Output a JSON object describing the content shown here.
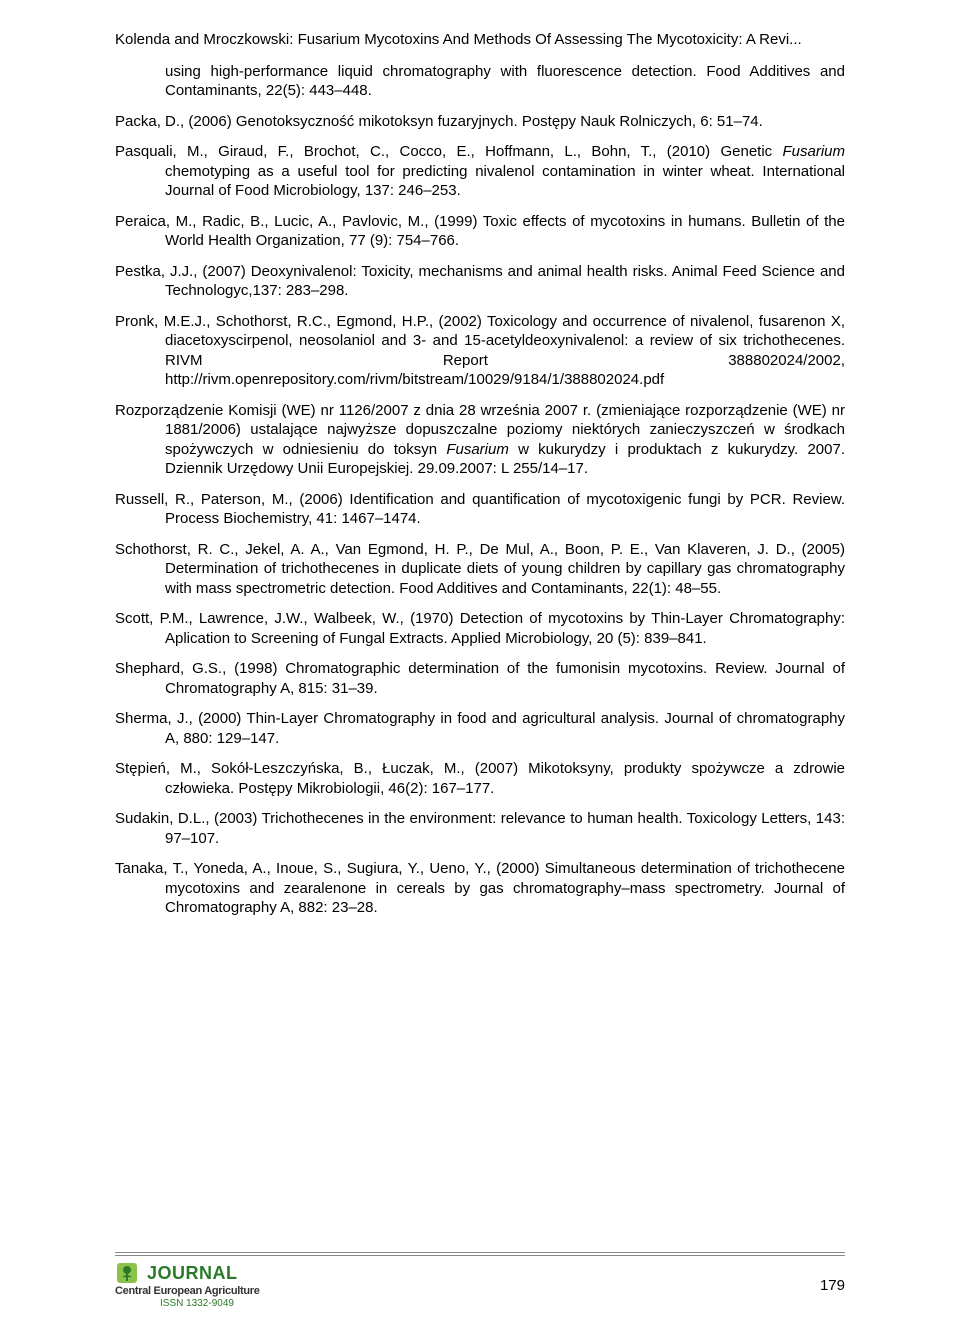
{
  "header": "Kolenda and Mroczkowski: Fusarium Mycotoxins And Methods Of Assessing The Mycotoxicity: A Revi...",
  "refs": [
    {
      "indent": 50,
      "text": "using high-performance liquid chromatography with fluorescence detection. Food Additives and Contaminants, 22(5): 443–448."
    },
    {
      "hanging": true,
      "text": "Packa, D., (2006) Genotoksyczność mikotoksyn fuzaryjnych. Postępy Nauk Rolniczych, 6: 51–74."
    },
    {
      "hanging": true,
      "html": "Pasquali, M., Giraud, F., Brochot, C., Cocco, E., Hoffmann, L., Bohn, T., (2010) Genetic <span class='italic'>Fusarium</span> chemotyping as a useful tool for predicting nivalenol contamination in winter wheat. International Journal of Food Microbiology, 137: 246–253."
    },
    {
      "hanging": true,
      "text": "Peraica, M., Radic, B., Lucic, A., Pavlovic, M., (1999) Toxic effects of mycotoxins in humans. Bulletin of the World Health Organization, 77 (9): 754–766."
    },
    {
      "hanging": true,
      "text": "Pestka, J.J., (2007) Deoxynivalenol: Toxicity, mechanisms and animal health risks. Animal Feed Science and Technologyc,137: 283–298."
    },
    {
      "hanging": true,
      "text": "Pronk, M.E.J., Schothorst, R.C., Egmond, H.P., (2002) Toxicology and occurrence of nivalenol, fusarenon X, diacetoxyscirpenol, neosolaniol and 3- and 15-acetyldeoxynivalenol: a review of six trichothecenes. RIVM Report 388802024/2002, http://rivm.openrepository.com/rivm/bitstream/10029/9184/1/388802024.pdf"
    },
    {
      "hanging": true,
      "html": "Rozporządzenie Komisji (WE) nr 1126/2007 z dnia 28 września 2007 r. (zmieniające rozporządzenie (WE) nr 1881/2006) ustalające najwyższe dopuszczalne poziomy niektórych zanieczyszczeń w środkach spożywczych w odniesieniu do toksyn <span class='italic'>Fusarium</span> w kukurydzy i produktach z kukurydzy. 2007. Dziennik Urzędowy Unii Europejskiej. 29.09.2007: L 255/14–17."
    },
    {
      "hanging": true,
      "text": "Russell, R., Paterson, M., (2006) Identification and quantification of mycotoxigenic fungi by PCR. Review. Process Biochemistry, 41: 1467–1474."
    },
    {
      "hanging": true,
      "text": "Schothorst, R. C., Jekel, A. A., Van Egmond, H. P., De Mul, A., Boon, P. E., Van Klaveren, J. D., (2005) Determination of trichothecenes in duplicate diets of young children by capillary gas chromatography with mass spectrometric detection. Food Additives and Contaminants, 22(1): 48–55."
    },
    {
      "hanging": true,
      "text": "Scott, P.M., Lawrence, J.W., Walbeek, W., (1970) Detection of mycotoxins by Thin-Layer Chromatography: Aplication to Screening of Fungal Extracts. Applied Microbiology, 20 (5): 839–841."
    },
    {
      "hanging": true,
      "text": "Shephard, G.S., (1998) Chromatographic determination of the fumonisin mycotoxins. Review. Journal of Chromatography A, 815: 31–39."
    },
    {
      "hanging": true,
      "text": "Sherma, J., (2000) Thin-Layer Chromatography in food and agricultural analysis. Journal of chromatography A, 880: 129–147."
    },
    {
      "hanging": true,
      "text": "Stępień, M., Sokół-Leszczyńska, B., Łuczak, M., (2007) Mikotoksyny, produkty spożywcze a zdrowie człowieka. Postępy Mikrobiologii, 46(2): 167–177."
    },
    {
      "hanging": true,
      "text": "Sudakin, D.L., (2003) Trichothecenes in the environment: relevance to human health. Toxicology Letters, 143: 97–107."
    },
    {
      "hanging": true,
      "text": "Tanaka, T., Yoneda, A., Inoue, S., Sugiura, Y., Ueno, Y., (2000) Simultaneous determination of trichothecene mycotoxins and zearalenone in cereals by gas chromatography–mass spectrometry. Journal of Chromatography A, 882: 23–28."
    }
  ],
  "footer": {
    "journal": "JOURNAL",
    "subtitle": "Central European Agriculture",
    "issn": "ISSN 1332-9049",
    "page": "179",
    "colors": {
      "green": "#2a7a2a",
      "text": "#000000",
      "grey": "#888888"
    }
  }
}
